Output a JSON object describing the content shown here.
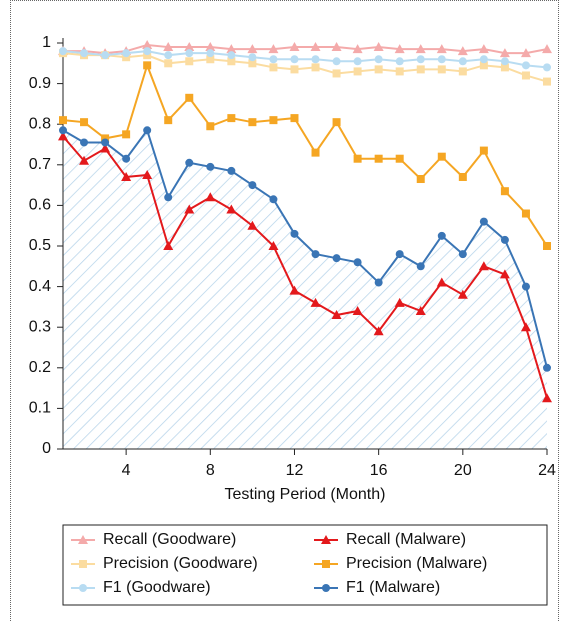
{
  "chart_data": {
    "type": "line",
    "x_label": "Testing Period (Month)",
    "x": [
      1,
      2,
      3,
      4,
      5,
      6,
      7,
      8,
      9,
      10,
      11,
      12,
      13,
      14,
      15,
      16,
      17,
      18,
      19,
      20,
      21,
      22,
      23,
      24
    ],
    "xlim": [
      1,
      24
    ],
    "xticks": [
      4,
      8,
      12,
      16,
      20,
      24
    ],
    "ylim": [
      0,
      1
    ],
    "yticks": [
      0,
      0.1,
      0.2,
      0.3,
      0.4,
      0.5,
      0.6,
      0.7,
      0.8,
      0.9,
      1
    ],
    "hatch_under": "F1 (Malware)",
    "series": [
      {
        "name": "Recall (Goodware)",
        "color": "#f4aaaa",
        "marker": "triangle",
        "values": [
          0.98,
          0.98,
          0.975,
          0.98,
          0.995,
          0.99,
          0.99,
          0.99,
          0.985,
          0.985,
          0.985,
          0.99,
          0.99,
          0.99,
          0.985,
          0.99,
          0.985,
          0.985,
          0.985,
          0.98,
          0.985,
          0.975,
          0.975,
          0.985
        ]
      },
      {
        "name": "Recall (Malware)",
        "color": "#e3191c",
        "marker": "triangle",
        "values": [
          0.77,
          0.71,
          0.74,
          0.67,
          0.675,
          0.5,
          0.59,
          0.62,
          0.59,
          0.55,
          0.5,
          0.39,
          0.36,
          0.33,
          0.34,
          0.29,
          0.36,
          0.34,
          0.41,
          0.38,
          0.45,
          0.43,
          0.3,
          0.125
        ]
      },
      {
        "name": "Precision (Goodware)",
        "color": "#fbdca0",
        "marker": "square",
        "values": [
          0.975,
          0.97,
          0.97,
          0.965,
          0.97,
          0.95,
          0.955,
          0.96,
          0.955,
          0.95,
          0.94,
          0.935,
          0.94,
          0.925,
          0.93,
          0.935,
          0.93,
          0.935,
          0.935,
          0.93,
          0.945,
          0.94,
          0.92,
          0.905
        ]
      },
      {
        "name": "Precision (Malware)",
        "color": "#f5a623",
        "marker": "square",
        "values": [
          0.81,
          0.805,
          0.765,
          0.775,
          0.945,
          0.81,
          0.865,
          0.795,
          0.815,
          0.805,
          0.81,
          0.815,
          0.73,
          0.805,
          0.715,
          0.715,
          0.715,
          0.665,
          0.72,
          0.67,
          0.735,
          0.635,
          0.58,
          0.5
        ]
      },
      {
        "name": "F1 (Goodware)",
        "color": "#b8dcf2",
        "marker": "circle",
        "values": [
          0.98,
          0.975,
          0.97,
          0.975,
          0.98,
          0.97,
          0.975,
          0.975,
          0.97,
          0.965,
          0.96,
          0.96,
          0.96,
          0.955,
          0.955,
          0.96,
          0.955,
          0.96,
          0.96,
          0.955,
          0.96,
          0.955,
          0.945,
          0.94
        ]
      },
      {
        "name": "F1 (Malware)",
        "color": "#3a75b5",
        "marker": "circle",
        "values": [
          0.785,
          0.755,
          0.755,
          0.715,
          0.785,
          0.62,
          0.705,
          0.695,
          0.685,
          0.65,
          0.615,
          0.53,
          0.48,
          0.47,
          0.46,
          0.41,
          0.48,
          0.45,
          0.525,
          0.48,
          0.56,
          0.515,
          0.4,
          0.2
        ]
      }
    ]
  }
}
